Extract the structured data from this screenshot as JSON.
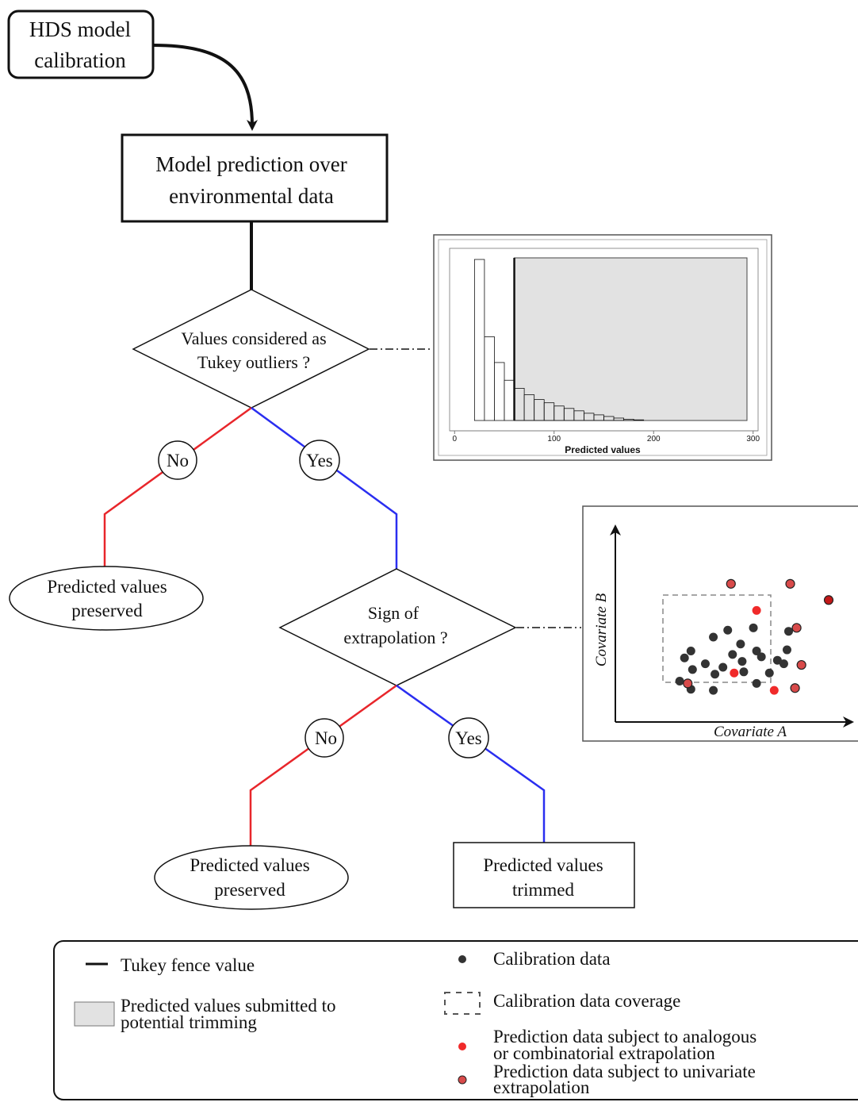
{
  "nodes": {
    "calibration": [
      "HDS model",
      "calibration"
    ],
    "prediction": [
      "Model prediction over",
      "environmental data"
    ],
    "tukey_question": [
      "Values considered as",
      "Tukey outliers ?"
    ],
    "extrapolation_question": [
      "Sign of",
      "extrapolation ?"
    ],
    "preserved_1": [
      "Predicted values",
      "preserved"
    ],
    "preserved_2": [
      "Predicted values",
      "preserved"
    ],
    "trimmed": [
      "Predicted values",
      "trimmed"
    ]
  },
  "branch_labels": {
    "no_1": "No",
    "yes_1": "Yes",
    "no_2": "No",
    "yes_2": "Yes"
  },
  "colors": {
    "no_branch": "#e8262b",
    "yes_branch": "#2a2ef0",
    "calibration_point": "#333333",
    "prediction_point": "#f02a2a",
    "univariate_point": "#d84a4a",
    "shaded_region": "#e2e2e2"
  },
  "histogram": {
    "type": "histogram",
    "xlabel": "Predicted values",
    "ticks": [
      0,
      100,
      200,
      300
    ],
    "xlim": [
      -5,
      305
    ],
    "fence_value": 60,
    "bins": [
      {
        "x0": 20,
        "x1": 30,
        "h": 1.0
      },
      {
        "x0": 30,
        "x1": 40,
        "h": 0.52
      },
      {
        "x0": 40,
        "x1": 50,
        "h": 0.36
      },
      {
        "x0": 50,
        "x1": 60,
        "h": 0.25
      },
      {
        "x0": 60,
        "x1": 70,
        "h": 0.2
      },
      {
        "x0": 70,
        "x1": 80,
        "h": 0.16
      },
      {
        "x0": 80,
        "x1": 90,
        "h": 0.13
      },
      {
        "x0": 90,
        "x1": 100,
        "h": 0.11
      },
      {
        "x0": 100,
        "x1": 110,
        "h": 0.09
      },
      {
        "x0": 110,
        "x1": 120,
        "h": 0.075
      },
      {
        "x0": 120,
        "x1": 130,
        "h": 0.06
      },
      {
        "x0": 130,
        "x1": 140,
        "h": 0.045
      },
      {
        "x0": 140,
        "x1": 150,
        "h": 0.035
      },
      {
        "x0": 150,
        "x1": 160,
        "h": 0.025
      },
      {
        "x0": 160,
        "x1": 170,
        "h": 0.015
      },
      {
        "x0": 170,
        "x1": 180,
        "h": 0.008
      },
      {
        "x0": 180,
        "x1": 190,
        "h": 0.004
      }
    ]
  },
  "scatter": {
    "xlabel": "Covariate A",
    "ylabel": "Covariate B",
    "calibration_points": [
      [
        0.14,
        0.38
      ],
      [
        0.28,
        0.5
      ],
      [
        0.37,
        0.56
      ],
      [
        0.53,
        0.58
      ],
      [
        0.1,
        0.32
      ],
      [
        0.23,
        0.27
      ],
      [
        0.34,
        0.24
      ],
      [
        0.46,
        0.29
      ],
      [
        0.58,
        0.33
      ],
      [
        0.68,
        0.3
      ],
      [
        0.74,
        0.39
      ],
      [
        0.4,
        0.35
      ],
      [
        0.15,
        0.22
      ],
      [
        0.29,
        0.18
      ],
      [
        0.47,
        0.2
      ],
      [
        0.63,
        0.19
      ],
      [
        0.72,
        0.27
      ],
      [
        0.07,
        0.12
      ],
      [
        0.14,
        0.05
      ],
      [
        0.28,
        0.04
      ],
      [
        0.55,
        0.1
      ],
      [
        0.75,
        0.55
      ],
      [
        0.45,
        0.44
      ],
      [
        0.55,
        0.38
      ]
    ],
    "analogous_points": [
      [
        0.55,
        0.73
      ],
      [
        0.41,
        0.19
      ],
      [
        0.66,
        0.04
      ]
    ],
    "univariate_points": [
      [
        0.39,
        0.96
      ],
      [
        0.76,
        0.96
      ],
      [
        1.0,
        0.82
      ],
      [
        0.8,
        0.58
      ],
      [
        0.83,
        0.26
      ],
      [
        0.12,
        0.1
      ],
      [
        0.79,
        0.06
      ]
    ],
    "dark_univariate_point": [
      1.0,
      0.82
    ]
  },
  "legend": {
    "fence": "Tukey fence value",
    "shaded": [
      "Predicted values submitted to",
      "potential trimming"
    ],
    "calibration": "Calibration data",
    "coverage": "Calibration data coverage",
    "analogous": [
      "Prediction data subject to analogous",
      "or combinatorial extrapolation"
    ],
    "univariate": [
      "Prediction data subject to univariate",
      "extrapolation"
    ]
  }
}
